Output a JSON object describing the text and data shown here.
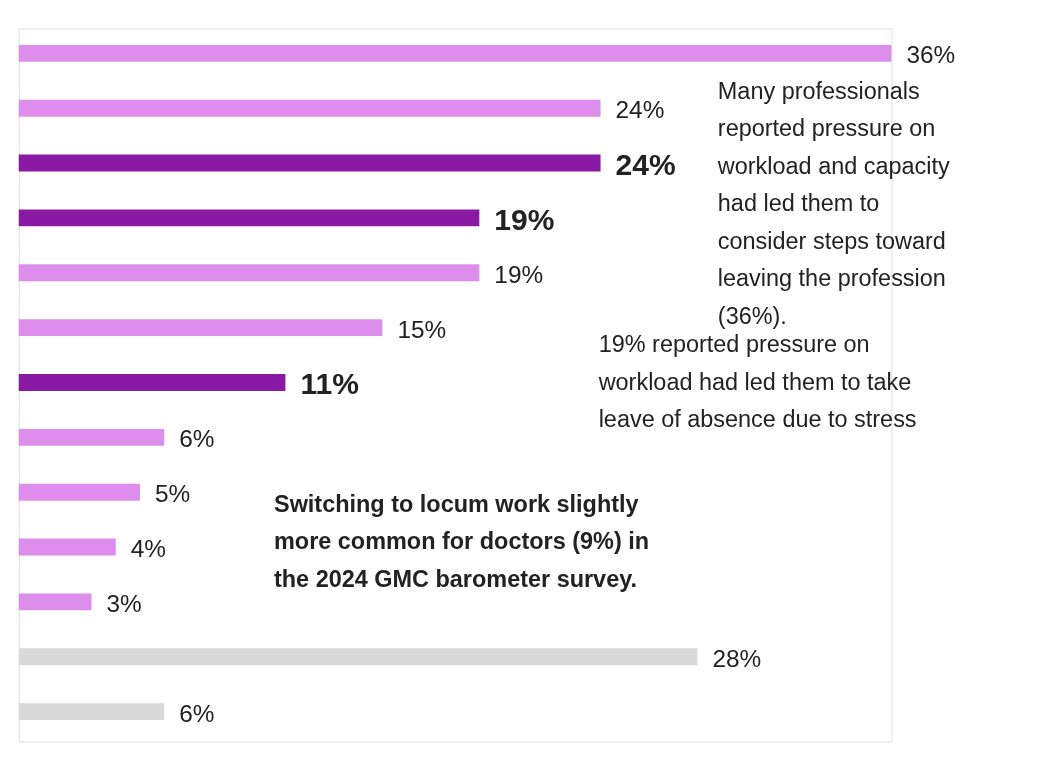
{
  "chart_data": {
    "type": "bar",
    "orientation": "horizontal",
    "categories": [
      null,
      null,
      null,
      null,
      null,
      null,
      null,
      null,
      null,
      null,
      null,
      null,
      null
    ],
    "values": [
      36,
      24,
      24,
      19,
      19,
      15,
      11,
      6,
      5,
      4,
      3,
      28,
      6
    ],
    "colors": [
      "#dd8deb",
      "#dd8deb",
      "#8a19a3",
      "#8a19a3",
      "#dd8deb",
      "#dd8deb",
      "#8a19a3",
      "#dd8deb",
      "#dd8deb",
      "#dd8deb",
      "#dd8deb",
      "#d9d9d9",
      "#d9d9d9"
    ],
    "value_labels": [
      "36%",
      "24%",
      "24%",
      "19%",
      "19%",
      "15%",
      "11%",
      "6%",
      "5%",
      "4%",
      "3%",
      "28%",
      "6%"
    ],
    "tick_labels": false,
    "annotations": [
      "Many professionals reported pressure on workload and capacity had led them to consider steps toward leaving the profession (36%).",
      "19% reported pressure on workload had led them to take leave of absence due to stress",
      "Switching to locum work slightly more common for doctors (9%) in the 2024 GMC barometer survey."
    ]
  }
}
